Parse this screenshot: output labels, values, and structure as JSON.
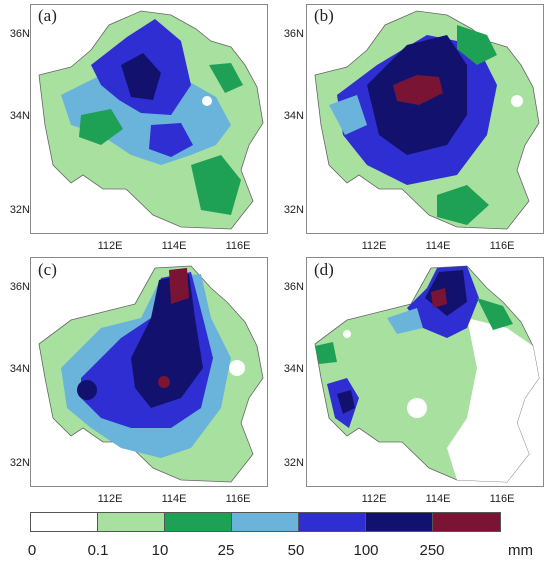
{
  "panels": [
    {
      "label": "(a)",
      "yticks": [
        "36N",
        "34N",
        "32N"
      ],
      "xticks": [
        "112E",
        "114E",
        "116E"
      ]
    },
    {
      "label": "(b)",
      "yticks": [
        "36N",
        "34N",
        "32N"
      ],
      "xticks": [
        "112E",
        "114E",
        "116E"
      ]
    },
    {
      "label": "(c)",
      "yticks": [
        "36N",
        "34N",
        "32N"
      ],
      "xticks": [
        "112E",
        "114E",
        "116E"
      ]
    },
    {
      "label": "(d)",
      "yticks": [
        "36N",
        "34N",
        "32N"
      ],
      "xticks": [
        "112E",
        "114E",
        "116E"
      ]
    }
  ],
  "colorbar": {
    "colors": [
      "#ffffff",
      "#a8e0a0",
      "#1ea055",
      "#6ab4dc",
      "#2e2ed2",
      "#12126e",
      "#7a1434"
    ],
    "labels": [
      "0",
      "0.1",
      "10",
      "25",
      "50",
      "100",
      "250"
    ],
    "unit": "mm"
  }
}
